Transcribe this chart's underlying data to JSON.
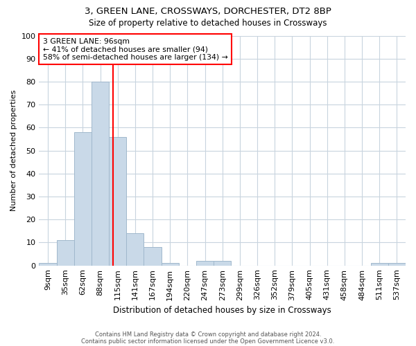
{
  "title1": "3, GREEN LANE, CROSSWAYS, DORCHESTER, DT2 8BP",
  "title2": "Size of property relative to detached houses in Crossways",
  "xlabel": "Distribution of detached houses by size in Crossways",
  "ylabel": "Number of detached properties",
  "bin_labels": [
    "9sqm",
    "35sqm",
    "62sqm",
    "88sqm",
    "115sqm",
    "141sqm",
    "167sqm",
    "194sqm",
    "220sqm",
    "247sqm",
    "273sqm",
    "299sqm",
    "326sqm",
    "352sqm",
    "379sqm",
    "405sqm",
    "431sqm",
    "458sqm",
    "484sqm",
    "511sqm",
    "537sqm"
  ],
  "bar_heights": [
    1,
    11,
    58,
    80,
    56,
    14,
    8,
    1,
    0,
    2,
    2,
    0,
    0,
    0,
    0,
    0,
    0,
    0,
    0,
    1,
    1
  ],
  "bar_color": "#c9d9e8",
  "bar_edge_color": "#a0b8cc",
  "red_line_x": 3.72,
  "annotation_text": "3 GREEN LANE: 96sqm\n← 41% of detached houses are smaller (94)\n58% of semi-detached houses are larger (134) →",
  "annotation_box_color": "white",
  "annotation_box_edge": "red",
  "footer1": "Contains HM Land Registry data © Crown copyright and database right 2024.",
  "footer2": "Contains public sector information licensed under the Open Government Licence v3.0.",
  "ylim": [
    0,
    100
  ],
  "background_color": "white",
  "grid_color": "#c8d4de"
}
